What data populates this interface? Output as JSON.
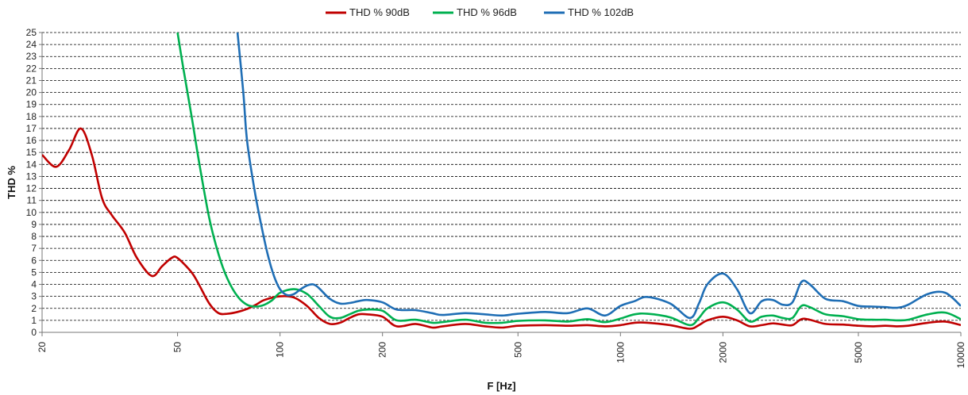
{
  "chart_data": {
    "type": "line",
    "title": "",
    "xlabel": "F [Hz]",
    "ylabel": "THD %",
    "x_scale": "log",
    "xlim": [
      20,
      10000
    ],
    "ylim": [
      0,
      25
    ],
    "grid": "horizontal-dashed",
    "legend_position": "top-center",
    "x_ticks": [
      20,
      50,
      100,
      200,
      500,
      1000,
      2000,
      5000,
      10000
    ],
    "x_tick_labels": [
      "20",
      "50",
      "100",
      "200",
      "500",
      "1000",
      "2000",
      "5000",
      "10000"
    ],
    "y_ticks": [
      0,
      1,
      2,
      3,
      4,
      5,
      6,
      7,
      8,
      9,
      10,
      11,
      12,
      13,
      14,
      15,
      16,
      17,
      18,
      19,
      20,
      21,
      22,
      23,
      24,
      25
    ],
    "y_tick_labels": [
      "0",
      "1",
      "2",
      "3",
      "4",
      "5",
      "6",
      "7",
      "8",
      "9",
      "10",
      "11",
      "12",
      "13",
      "14",
      "15",
      "16",
      "17",
      "18",
      "19",
      "20",
      "21",
      "22",
      "23",
      "24",
      "25"
    ],
    "series": [
      {
        "name": "THD % 90dB",
        "color": "#c00000",
        "x": [
          20,
          22,
          24,
          26,
          28,
          30,
          32,
          35,
          38,
          42,
          45,
          48,
          50,
          55,
          58,
          62,
          66,
          70,
          75,
          80,
          85,
          90,
          100,
          110,
          120,
          130,
          140,
          150,
          160,
          170,
          180,
          200,
          220,
          250,
          280,
          300,
          350,
          400,
          450,
          500,
          600,
          700,
          800,
          900,
          1000,
          1100,
          1200,
          1400,
          1600,
          1700,
          1800,
          2000,
          2200,
          2400,
          2600,
          2800,
          3000,
          3200,
          3400,
          3600,
          4000,
          4500,
          5000,
          5500,
          6000,
          6500,
          7000,
          8000,
          9000,
          10000
        ],
        "values": [
          14.8,
          13.8,
          15.2,
          17.0,
          14.8,
          11.2,
          9.8,
          8.3,
          6.2,
          4.7,
          5.5,
          6.2,
          6.2,
          5.0,
          3.9,
          2.4,
          1.6,
          1.55,
          1.7,
          1.95,
          2.3,
          2.7,
          3.0,
          2.9,
          2.2,
          1.2,
          0.7,
          0.8,
          1.2,
          1.5,
          1.5,
          1.3,
          0.5,
          0.7,
          0.4,
          0.5,
          0.7,
          0.5,
          0.4,
          0.55,
          0.6,
          0.55,
          0.6,
          0.5,
          0.6,
          0.8,
          0.8,
          0.6,
          0.3,
          0.6,
          1.0,
          1.3,
          1.0,
          0.5,
          0.6,
          0.75,
          0.65,
          0.6,
          1.1,
          1.05,
          0.7,
          0.65,
          0.55,
          0.5,
          0.55,
          0.5,
          0.55,
          0.8,
          0.9,
          0.6
        ]
      },
      {
        "name": "THD % 96dB",
        "color": "#00b050",
        "x": [
          50,
          52,
          55,
          58,
          62,
          66,
          70,
          75,
          80,
          85,
          90,
          95,
          100,
          110,
          120,
          130,
          140,
          150,
          160,
          170,
          180,
          200,
          220,
          250,
          280,
          300,
          350,
          400,
          450,
          500,
          600,
          700,
          800,
          900,
          1000,
          1100,
          1200,
          1400,
          1600,
          1700,
          1800,
          2000,
          2200,
          2400,
          2600,
          2800,
          3000,
          3200,
          3400,
          3600,
          4000,
          4500,
          5000,
          5500,
          6000,
          6500,
          7000,
          8000,
          9000,
          10000
        ],
        "values": [
          25.0,
          22.0,
          18.0,
          14.0,
          9.5,
          6.5,
          4.5,
          3.0,
          2.3,
          2.15,
          2.3,
          2.7,
          3.3,
          3.6,
          3.2,
          2.2,
          1.3,
          1.2,
          1.5,
          1.8,
          1.9,
          1.8,
          1.0,
          1.05,
          0.8,
          0.85,
          1.05,
          0.8,
          0.8,
          0.95,
          1.0,
          0.9,
          1.1,
          0.85,
          1.15,
          1.5,
          1.55,
          1.25,
          0.6,
          1.2,
          2.0,
          2.5,
          1.9,
          0.9,
          1.3,
          1.4,
          1.2,
          1.2,
          2.2,
          2.1,
          1.5,
          1.35,
          1.1,
          1.05,
          1.05,
          1.0,
          1.05,
          1.5,
          1.65,
          1.1
        ]
      },
      {
        "name": "THD % 102dB",
        "color": "#1f6eb5",
        "x": [
          75,
          78,
          80,
          84,
          88,
          92,
          96,
          100,
          105,
          110,
          115,
          120,
          125,
          130,
          140,
          150,
          160,
          170,
          180,
          200,
          220,
          250,
          280,
          300,
          350,
          400,
          450,
          500,
          600,
          700,
          800,
          900,
          1000,
          1100,
          1200,
          1400,
          1600,
          1700,
          1800,
          2000,
          2200,
          2400,
          2600,
          2800,
          3000,
          3200,
          3400,
          3600,
          4000,
          4500,
          5000,
          5500,
          6000,
          6500,
          7000,
          8000,
          9000,
          10000
        ],
        "values": [
          25.0,
          20.0,
          16.0,
          12.0,
          9.0,
          6.5,
          4.7,
          3.6,
          3.1,
          3.2,
          3.6,
          3.9,
          4.0,
          3.7,
          2.8,
          2.4,
          2.45,
          2.6,
          2.7,
          2.5,
          1.9,
          1.85,
          1.6,
          1.45,
          1.6,
          1.5,
          1.4,
          1.55,
          1.7,
          1.6,
          2.0,
          1.4,
          2.2,
          2.6,
          2.95,
          2.4,
          1.2,
          2.4,
          4.0,
          4.9,
          3.6,
          1.6,
          2.6,
          2.7,
          2.3,
          2.5,
          4.2,
          4.0,
          2.8,
          2.6,
          2.2,
          2.15,
          2.1,
          2.05,
          2.3,
          3.2,
          3.3,
          2.2
        ]
      }
    ]
  }
}
